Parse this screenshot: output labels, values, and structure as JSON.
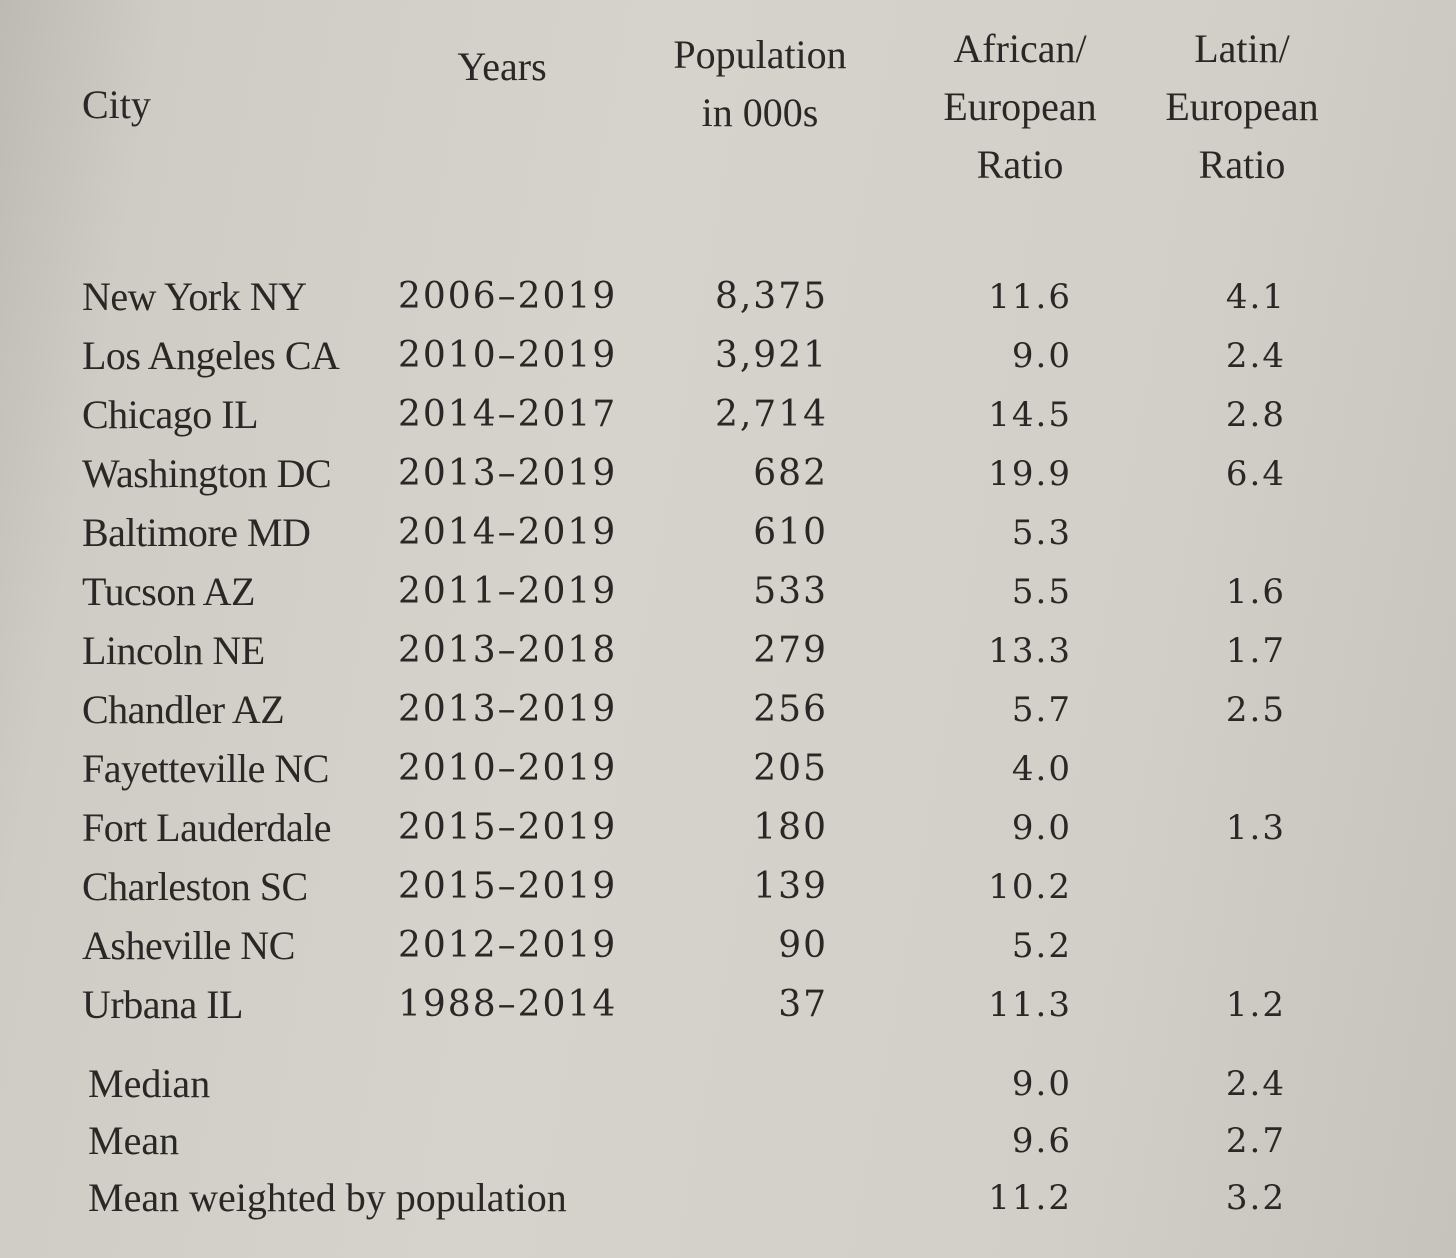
{
  "header": {
    "city": "City",
    "years": "Years",
    "population": [
      "Population",
      "in 000s"
    ],
    "african_ratio": [
      "African/",
      "European",
      "Ratio"
    ],
    "latin_ratio": [
      "Latin/",
      "European",
      "Ratio"
    ]
  },
  "rows": [
    {
      "city": "New York NY",
      "years": "2006–2019",
      "population": "8,375",
      "african": "11.6",
      "latin": "4.1"
    },
    {
      "city": "Los Angeles CA",
      "years": "2010–2019",
      "population": "3,921",
      "african": "9.0",
      "latin": "2.4"
    },
    {
      "city": "Chicago IL",
      "years": "2014–2017",
      "population": "2,714",
      "african": "14.5",
      "latin": "2.8"
    },
    {
      "city": "Washington DC",
      "years": "2013–2019",
      "population": "682",
      "african": "19.9",
      "latin": "6.4"
    },
    {
      "city": "Baltimore MD",
      "years": "2014–2019",
      "population": "610",
      "african": "5.3",
      "latin": ""
    },
    {
      "city": "Tucson AZ",
      "years": "2011–2019",
      "population": "533",
      "african": "5.5",
      "latin": "1.6"
    },
    {
      "city": "Lincoln NE",
      "years": "2013–2018",
      "population": "279",
      "african": "13.3",
      "latin": "1.7"
    },
    {
      "city": "Chandler AZ",
      "years": "2013–2019",
      "population": "256",
      "african": "5.7",
      "latin": "2.5"
    },
    {
      "city": "Fayetteville NC",
      "years": "2010–2019",
      "population": "205",
      "african": "4.0",
      "latin": ""
    },
    {
      "city": "Fort Lauderdale",
      "years": "2015–2019",
      "population": "180",
      "african": "9.0",
      "latin": "1.3"
    },
    {
      "city": "Charleston SC",
      "years": "2015–2019",
      "population": "139",
      "african": "10.2",
      "latin": ""
    },
    {
      "city": "Asheville NC",
      "years": "2012–2019",
      "population": "90",
      "african": "5.2",
      "latin": ""
    },
    {
      "city": "Urbana IL",
      "years": "1988–2014",
      "population": "37",
      "african": "11.3",
      "latin": "1.2"
    }
  ],
  "summary": [
    {
      "label": "Median",
      "african": "9.0",
      "latin": "2.4"
    },
    {
      "label": "Mean",
      "african": "9.6",
      "latin": "2.7"
    },
    {
      "label": "Mean weighted by population",
      "african": "11.2",
      "latin": "3.2"
    }
  ]
}
